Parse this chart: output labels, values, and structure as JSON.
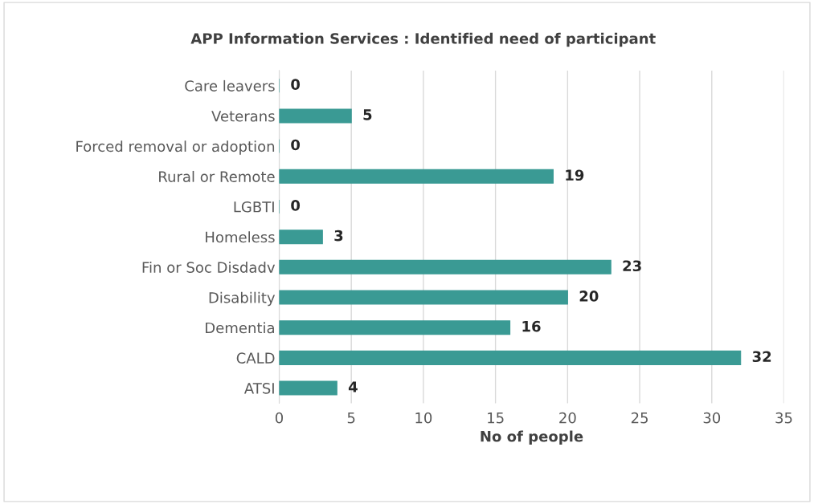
{
  "chart_data": {
    "type": "bar",
    "orientation": "horizontal",
    "title": "APP Information Services : Identified need of participant",
    "xlabel": "No of people",
    "categories": [
      "Care leavers",
      "Veterans",
      "Forced removal or adoption",
      "Rural or Remote",
      "LGBTI",
      "Homeless",
      "Fin or Soc Disdadv",
      "Disability",
      "Dementia",
      "CALD",
      "ATSI"
    ],
    "values": [
      0,
      5,
      0,
      19,
      0,
      3,
      23,
      20,
      16,
      32,
      4
    ],
    "color": "#3a9a94",
    "xlim": [
      0,
      35
    ],
    "xticks": [
      0,
      5,
      10,
      15,
      20,
      25,
      30,
      35
    ],
    "grid": "x",
    "data_labels": true
  }
}
